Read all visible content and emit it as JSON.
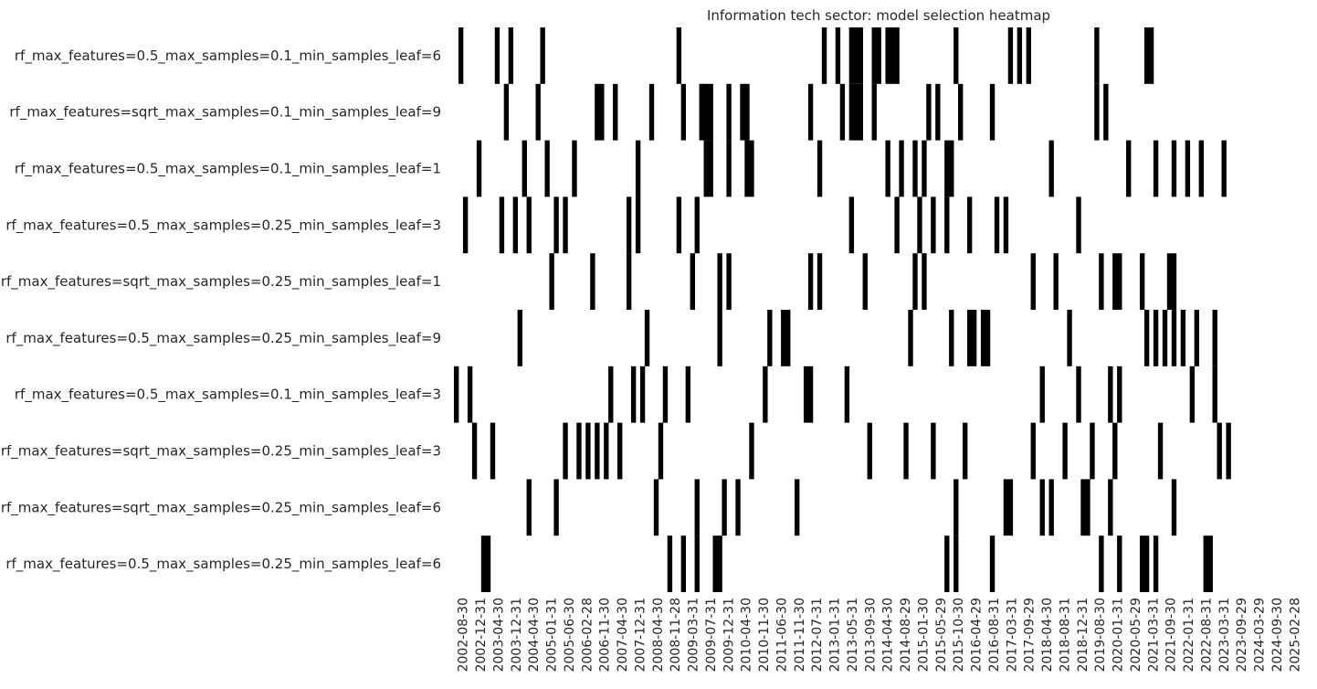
{
  "chart_data": {
    "type": "heatmap",
    "title": "Information tech sector: model selection heatmap",
    "colors": {
      "selected": "#000000",
      "unselected": "#ffffff"
    },
    "models": [
      "rf_max_features=0.5_max_samples=0.1_min_samples_leaf=6",
      "rf_max_features=sqrt_max_samples=0.1_min_samples_leaf=9",
      "rf_max_features=0.5_max_samples=0.1_min_samples_leaf=1",
      "rf_max_features=0.5_max_samples=0.25_min_samples_leaf=3",
      "rf_max_features=sqrt_max_samples=0.25_min_samples_leaf=1",
      "rf_max_features=0.5_max_samples=0.25_min_samples_leaf=9",
      "rf_max_features=0.5_max_samples=0.1_min_samples_leaf=3",
      "rf_max_features=sqrt_max_samples=0.25_min_samples_leaf=3",
      "rf_max_features=sqrt_max_samples=0.25_min_samples_leaf=6",
      "rf_max_features=0.5_max_samples=0.25_min_samples_leaf=6"
    ],
    "xtick_labels": [
      "2002-08-30",
      "2002-12-31",
      "2003-04-30",
      "2003-12-31",
      "2004-04-30",
      "2005-01-31",
      "2005-06-30",
      "2006-02-28",
      "2006-11-30",
      "2007-04-30",
      "2007-12-31",
      "2008-04-30",
      "2008-11-28",
      "2009-03-31",
      "2009-07-31",
      "2009-12-31",
      "2010-04-30",
      "2010-11-30",
      "2011-06-30",
      "2011-11-30",
      "2012-07-31",
      "2013-01-31",
      "2013-05-31",
      "2013-09-30",
      "2014-04-30",
      "2014-08-29",
      "2015-01-30",
      "2015-05-29",
      "2015-10-30",
      "2016-04-29",
      "2016-08-31",
      "2017-03-31",
      "2017-09-29",
      "2018-04-30",
      "2018-08-31",
      "2018-12-31",
      "2019-08-30",
      "2020-01-31",
      "2020-05-29",
      "2021-03-31",
      "2021-09-30",
      "2022-01-31",
      "2022-08-31",
      "2023-03-31",
      "2023-09-29",
      "2024-03-29",
      "2024-09-30",
      "2025-02-28"
    ],
    "n_periods": 187,
    "selected_period_index_by_model": [
      [
        1,
        9,
        12,
        19,
        49,
        81,
        84,
        87,
        88,
        89,
        92,
        93,
        95,
        96,
        97,
        110,
        122,
        124,
        126,
        141,
        152,
        153
      ],
      [
        11,
        18,
        31,
        32,
        35,
        43,
        50,
        54,
        55,
        56,
        60,
        63,
        64,
        78,
        85,
        87,
        88,
        89,
        92,
        104,
        106,
        111,
        118,
        141,
        143
      ],
      [
        5,
        15,
        20,
        26,
        40,
        55,
        56,
        60,
        64,
        65,
        80,
        95,
        98,
        101,
        103,
        108,
        109,
        131,
        148,
        154,
        158,
        161,
        164,
        169
      ],
      [
        2,
        10,
        13,
        16,
        22,
        24,
        38,
        40,
        49,
        53,
        87,
        97,
        102,
        105,
        108,
        113,
        119,
        121,
        137
      ],
      [
        21,
        30,
        38,
        52,
        58,
        60,
        78,
        80,
        90,
        101,
        103,
        127,
        132,
        142,
        145,
        146,
        151,
        157,
        158
      ],
      [
        14,
        42,
        58,
        69,
        72,
        73,
        100,
        109,
        113,
        114,
        116,
        117,
        135,
        152,
        154,
        156,
        158,
        160,
        163,
        167
      ],
      [
        0,
        3,
        34,
        39,
        41,
        46,
        51,
        68,
        77,
        78,
        86,
        129,
        137,
        144,
        146,
        162,
        167
      ],
      [
        4,
        8,
        24,
        27,
        29,
        31,
        33,
        36,
        45,
        65,
        91,
        99,
        105,
        112,
        127,
        134,
        140,
        145,
        155,
        168,
        170
      ],
      [
        16,
        22,
        44,
        53,
        59,
        62,
        75,
        110,
        121,
        122,
        129,
        131,
        138,
        139,
        144,
        158
      ],
      [
        6,
        7,
        47,
        50,
        53,
        57,
        58,
        108,
        110,
        118,
        142,
        146,
        151,
        152,
        154,
        165,
        166
      ]
    ]
  }
}
